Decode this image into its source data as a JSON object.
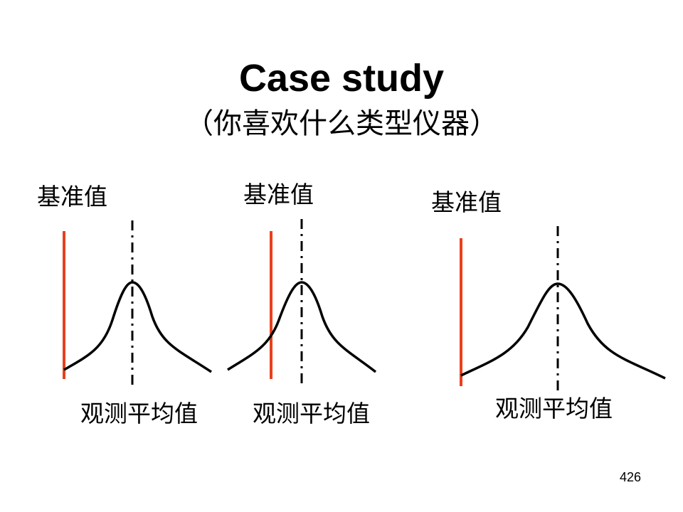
{
  "title": "Case study",
  "subtitle": "（你喜欢什么类型仪器）",
  "panels": [
    {
      "reference_label": "基准值",
      "mean_label": "观测平均值"
    },
    {
      "reference_label": "基准值",
      "mean_label": "观测平均值"
    },
    {
      "reference_label": "基准值",
      "mean_label": "观测平均值"
    }
  ],
  "page_number": "426"
}
